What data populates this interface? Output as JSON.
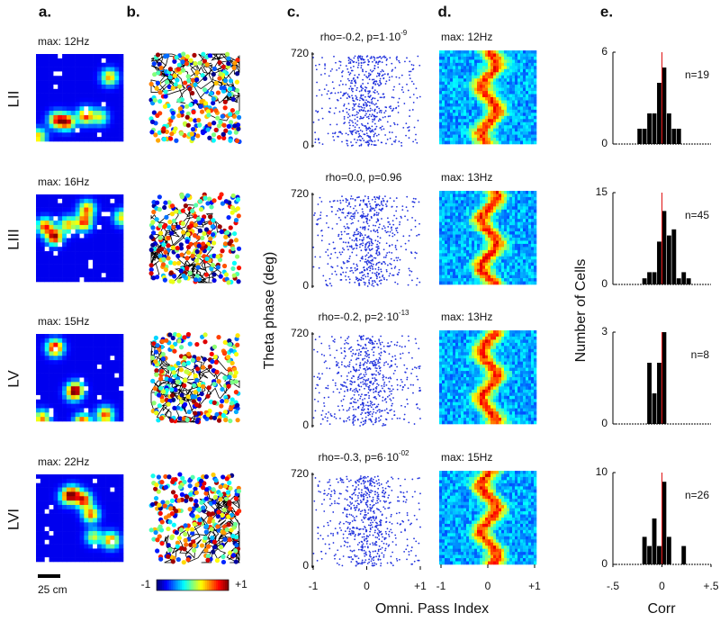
{
  "panel_labels": [
    "a.",
    "b.",
    "c.",
    "d.",
    "e."
  ],
  "rows": [
    {
      "layer": "LII",
      "rate_max": "max: 12Hz",
      "stats": "rho=-0.2, p=1·10",
      "stats_exp": "-9",
      "phase_max": "max: 12Hz"
    },
    {
      "layer": "LIII",
      "rate_max": "max: 16Hz",
      "stats": "rho=0.0, p=0.96",
      "phase_max": "max: 13Hz"
    },
    {
      "layer": "LV",
      "rate_max": "max: 15Hz",
      "stats": "rho=-0.2, p=2·10",
      "stats_exp": "-13",
      "phase_max": "max: 13Hz"
    },
    {
      "layer": "LVI",
      "rate_max": "max: 22Hz",
      "stats": "rho=-0.3, p=6·10",
      "stats_exp": "-02",
      "phase_max": "max: 15Hz"
    }
  ],
  "scale_bar": "25 cm",
  "colorbar": {
    "min_label": "-1",
    "max_label": "+1"
  },
  "phase_axis": {
    "yticks": [
      0,
      720
    ],
    "xticks": [
      -1,
      0,
      {
        "value": 1,
        "label": "+1"
      }
    ],
    "ylabel": "Theta phase (deg)",
    "xlabel": "Omni. Pass Index"
  },
  "hist_ylabel": "Number of Cells",
  "hist_xlabel": "Corr",
  "chart_data": [
    {
      "type": "histogram",
      "bins": [
        -0.25,
        -0.2,
        -0.15,
        -0.1,
        -0.05,
        0,
        0.05,
        0.1,
        0.15,
        0.2
      ],
      "values": [
        1,
        1,
        2,
        2,
        4,
        5,
        2,
        1,
        1
      ],
      "color": "#000000",
      "xlim": [
        -0.5,
        0.5
      ],
      "ylim": [
        0,
        6
      ],
      "yticks": [
        0,
        6
      ],
      "annotation": "n=19",
      "ref_line": 0,
      "ref_color": "#e01010"
    },
    {
      "type": "histogram",
      "bins": [
        -0.2,
        -0.15,
        -0.1,
        -0.05,
        0,
        0.05,
        0.1,
        0.15,
        0.2,
        0.25,
        0.3
      ],
      "values": [
        1,
        2,
        2,
        7,
        12,
        8,
        9,
        1,
        2,
        1
      ],
      "color": "#000000",
      "xlim": [
        -0.5,
        0.5
      ],
      "ylim": [
        0,
        15
      ],
      "yticks": [
        0,
        15
      ],
      "annotation": "n=45",
      "ref_line": 0,
      "ref_color": "#e01010"
    },
    {
      "type": "histogram",
      "bins": [
        -0.15,
        -0.1,
        -0.05,
        0,
        0.05
      ],
      "values": [
        2,
        1,
        2,
        3
      ],
      "color": "#000000",
      "xlim": [
        -0.5,
        0.5
      ],
      "ylim": [
        0,
        3
      ],
      "yticks": [
        0,
        3
      ],
      "annotation": "n=8",
      "ref_line": 0,
      "ref_color": "#e01010"
    },
    {
      "type": "histogram",
      "bins": [
        -0.2,
        -0.15,
        -0.1,
        -0.05,
        0,
        0.05,
        0.1,
        0.15,
        0.2,
        0.25
      ],
      "values": [
        3,
        2,
        5,
        2,
        9,
        3,
        0,
        0,
        2
      ],
      "color": "#000000",
      "xlim": [
        -0.5,
        0.5
      ],
      "ylim": [
        0,
        10
      ],
      "yticks": [
        0,
        10
      ],
      "xticks": [
        {
          "value": -0.5,
          "label": "-.5"
        },
        0,
        {
          "value": 0.5,
          "label": "+.5"
        }
      ],
      "annotation": "n=26",
      "ref_line": 0,
      "ref_color": "#e01010"
    }
  ]
}
